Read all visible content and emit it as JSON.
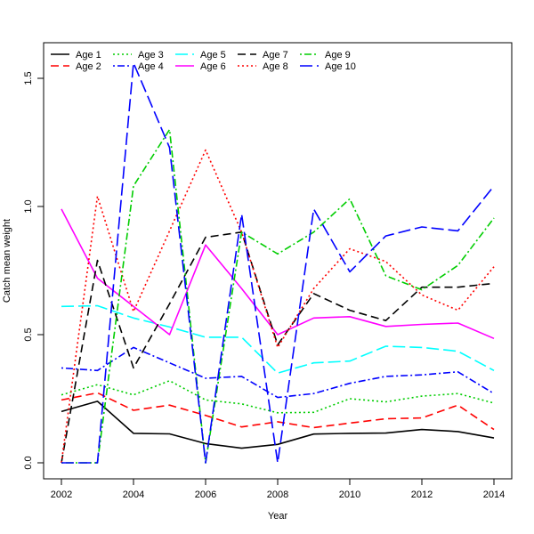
{
  "chart_data": {
    "type": "line",
    "title": "",
    "xlabel": "Year",
    "ylabel": "Catch mean weight",
    "x": [
      2002,
      2003,
      2004,
      2005,
      2006,
      2007,
      2008,
      2009,
      2010,
      2011,
      2012,
      2013,
      2014
    ],
    "xlim": [
      2002,
      2014
    ],
    "ylim": [
      0,
      1.57
    ],
    "xticks": [
      2002,
      2004,
      2006,
      2008,
      2010,
      2012,
      2014
    ],
    "yticks": [
      0.0,
      0.5,
      1.0,
      1.5
    ],
    "ytick_labels": [
      "0.0",
      "0.5",
      "1.0",
      "1.5"
    ],
    "legend_position": "top-left",
    "grid": false,
    "series": [
      {
        "name": "Age 1",
        "color": "#000000",
        "dash": "solid",
        "values": [
          0.2,
          0.24,
          0.115,
          0.113,
          0.075,
          0.057,
          0.072,
          0.112,
          0.115,
          0.116,
          0.13,
          0.122,
          0.097
        ]
      },
      {
        "name": "Age 2",
        "color": "#ff0000",
        "dash": "dashed",
        "values": [
          0.245,
          0.273,
          0.205,
          0.225,
          0.185,
          0.14,
          0.16,
          0.137,
          0.155,
          0.172,
          0.175,
          0.225,
          0.13
        ]
      },
      {
        "name": "Age 3",
        "color": "#00cd00",
        "dash": "dotted",
        "values": [
          0.265,
          0.305,
          0.265,
          0.32,
          0.245,
          0.23,
          0.195,
          0.197,
          0.25,
          0.238,
          0.26,
          0.27,
          0.233
        ]
      },
      {
        "name": "Age 4",
        "color": "#0000ff",
        "dash": "dashdot",
        "values": [
          0.37,
          0.36,
          0.45,
          0.39,
          0.33,
          0.337,
          0.255,
          0.27,
          0.31,
          0.337,
          0.343,
          0.355,
          0.27
        ]
      },
      {
        "name": "Age 5",
        "color": "#00ffff",
        "dash": "longdash",
        "values": [
          0.61,
          0.613,
          0.565,
          0.53,
          0.49,
          0.49,
          0.35,
          0.39,
          0.397,
          0.455,
          0.45,
          0.435,
          0.36
        ]
      },
      {
        "name": "Age 6",
        "color": "#ff00ff",
        "dash": "solid",
        "values": [
          0.99,
          0.72,
          0.61,
          0.5,
          0.85,
          0.68,
          0.5,
          0.565,
          0.57,
          0.532,
          0.54,
          0.545,
          0.485
        ]
      },
      {
        "name": "Age 7",
        "color": "#000000",
        "dash": "dashed",
        "values": [
          0.0,
          0.79,
          0.37,
          0.62,
          0.88,
          0.9,
          0.46,
          0.66,
          0.595,
          0.555,
          0.685,
          0.685,
          0.7
        ]
      },
      {
        "name": "Age 8",
        "color": "#ff0000",
        "dash": "dotted",
        "values": [
          0.0,
          1.04,
          0.59,
          0.905,
          1.22,
          0.9,
          0.45,
          0.68,
          0.835,
          0.785,
          0.655,
          0.595,
          0.765
        ]
      },
      {
        "name": "Age 9",
        "color": "#00cd00",
        "dash": "dashdot",
        "values": [
          0.0,
          0.0,
          1.08,
          1.3,
          0.0,
          0.9,
          0.815,
          0.9,
          1.03,
          0.73,
          0.675,
          0.77,
          0.955
        ]
      },
      {
        "name": "Age 10",
        "color": "#0000ff",
        "dash": "longdash",
        "values": [
          0.0,
          0.0,
          1.56,
          1.23,
          0.0,
          0.97,
          0.0,
          0.99,
          0.745,
          0.885,
          0.92,
          0.905,
          1.08
        ]
      }
    ]
  }
}
